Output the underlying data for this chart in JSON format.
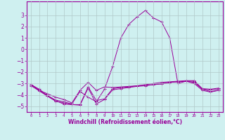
{
  "xlabel": "Windchill (Refroidissement éolien,°C)",
  "x": [
    0,
    1,
    2,
    3,
    4,
    5,
    6,
    7,
    8,
    9,
    10,
    11,
    12,
    13,
    14,
    15,
    16,
    17,
    18,
    19,
    20,
    21,
    22,
    23
  ],
  "lines": [
    [
      -3.1,
      -3.6,
      -3.9,
      -4.2,
      -4.4,
      -4.7,
      -3.6,
      -2.9,
      -3.6,
      -3.3,
      -3.35,
      -3.3,
      -3.25,
      -3.2,
      -3.15,
      -3.1,
      -3.05,
      -2.9,
      -2.85,
      -2.8,
      -2.8,
      -3.5,
      -3.55,
      -3.5
    ],
    [
      -3.1,
      -3.6,
      -4.1,
      -4.5,
      -4.8,
      -4.85,
      -4.9,
      -3.4,
      -4.8,
      -4.4,
      -3.55,
      -3.45,
      -3.35,
      -3.25,
      -3.2,
      -3.1,
      -3.0,
      -2.9,
      -2.85,
      -2.8,
      -3.0,
      -3.6,
      -3.75,
      -3.6
    ],
    [
      -3.1,
      -3.5,
      -4.05,
      -4.45,
      -4.6,
      -4.8,
      -3.7,
      -4.2,
      -4.6,
      -3.5,
      -1.5,
      1.0,
      2.2,
      2.85,
      3.4,
      2.75,
      2.4,
      1.0,
      -3.0,
      -2.8,
      -2.9,
      -3.5,
      -3.7,
      -3.6
    ],
    [
      -3.2,
      -3.65,
      -4.1,
      -4.55,
      -4.7,
      -4.85,
      -4.85,
      -3.3,
      -4.5,
      -4.35,
      -3.45,
      -3.35,
      -3.3,
      -3.2,
      -3.1,
      -3.0,
      -2.9,
      -2.85,
      -2.8,
      -2.75,
      -2.75,
      -3.45,
      -3.5,
      -3.4
    ]
  ],
  "line_color": "#990099",
  "bg_color": "#cff0f0",
  "grid_color": "#b0c8c8",
  "ylim": [
    -5.5,
    4.2
  ],
  "yticks": [
    -5,
    -4,
    -3,
    -2,
    -1,
    0,
    1,
    2,
    3
  ],
  "xlim": [
    -0.5,
    23.5
  ]
}
